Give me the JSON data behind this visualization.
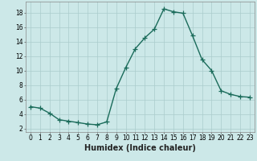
{
  "x": [
    0,
    1,
    2,
    3,
    4,
    5,
    6,
    7,
    8,
    9,
    10,
    11,
    12,
    13,
    14,
    15,
    16,
    17,
    18,
    19,
    20,
    21,
    22,
    23
  ],
  "y": [
    5.0,
    4.8,
    4.1,
    3.2,
    3.0,
    2.8,
    2.6,
    2.5,
    2.9,
    7.5,
    10.4,
    13.0,
    14.5,
    15.7,
    18.5,
    18.1,
    17.9,
    14.8,
    11.5,
    10.0,
    7.2,
    6.7,
    6.4,
    6.3
  ],
  "line_color": "#1a6b5a",
  "marker_size": 3,
  "bg_color": "#cce8e8",
  "grid_color": "#aacccc",
  "xlabel": "Humidex (Indice chaleur)",
  "xlim": [
    -0.5,
    23.5
  ],
  "ylim": [
    1.5,
    19.5
  ],
  "yticks": [
    2,
    4,
    6,
    8,
    10,
    12,
    14,
    16,
    18
  ],
  "xticks": [
    0,
    1,
    2,
    3,
    4,
    5,
    6,
    7,
    8,
    9,
    10,
    11,
    12,
    13,
    14,
    15,
    16,
    17,
    18,
    19,
    20,
    21,
    22,
    23
  ],
  "xlabel_fontsize": 7,
  "tick_fontsize": 5.5,
  "line_width": 1.0,
  "figure_bg": "#cce8e8"
}
